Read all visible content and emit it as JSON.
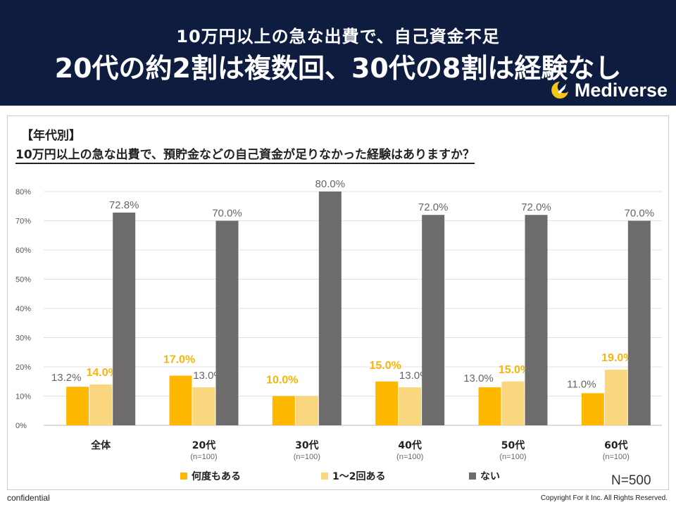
{
  "header": {
    "subtitle": "10万円以上の急な出費で、自己資金不足",
    "title": "20代の約2割は複数回、30代の8割は経験なし",
    "logo_text": "Mediverse"
  },
  "question": {
    "category": "【年代別】",
    "text": "10万円以上の急な出費で、預貯金などの自己資金が足りなかった経験はありますか？"
  },
  "sample_size": "N=500",
  "footer": {
    "left": "confidential",
    "right": "Copyright For it Inc. All Rights Reserved."
  },
  "colors": {
    "header_bg": "#0e1c3f",
    "series_many": "#ffb800",
    "series_few": "#fad77e",
    "series_none": "#6e6b6d",
    "highlight_label": "#f5b50b",
    "normal_label": "#666666"
  },
  "chart_data": {
    "type": "bar",
    "title": "",
    "xlabel": "",
    "ylabel": "",
    "ylim": [
      0,
      80
    ],
    "yticks": [
      0,
      10,
      20,
      30,
      40,
      50,
      60,
      70,
      80
    ],
    "ytick_labels": [
      "0%",
      "10%",
      "20%",
      "30%",
      "40%",
      "50%",
      "60%",
      "70%",
      "80%"
    ],
    "grid": true,
    "legend_position": "bottom",
    "categories": [
      "全体",
      "20代",
      "30代",
      "40代",
      "50代",
      "60代"
    ],
    "category_sub": [
      "",
      "(n=100)",
      "(n=100)",
      "(n=100)",
      "(n=100)",
      "(n=100)"
    ],
    "series": [
      {
        "name": "何度もある",
        "values": [
          13.2,
          17.0,
          10.0,
          15.0,
          13.0,
          11.0
        ],
        "labels": [
          "13.2%",
          "17.0%",
          "10.0%",
          "15.0%",
          "13.0%",
          "11.0%"
        ],
        "highlight": [
          false,
          true,
          true,
          true,
          false,
          false
        ]
      },
      {
        "name": "1～2回ある",
        "values": [
          14.0,
          13.0,
          10.0,
          13.0,
          15.0,
          19.0
        ],
        "labels": [
          "14.0%",
          "13.0%",
          "",
          "13.0%",
          "15.0%",
          "19.0%"
        ],
        "highlight": [
          true,
          false,
          false,
          false,
          true,
          true
        ]
      },
      {
        "name": "ない",
        "values": [
          72.8,
          70.0,
          80.0,
          72.0,
          72.0,
          70.0
        ],
        "labels": [
          "72.8%",
          "70.0%",
          "80.0%",
          "72.0%",
          "72.0%",
          "70.0%"
        ],
        "highlight": [
          false,
          false,
          false,
          false,
          false,
          false
        ]
      }
    ]
  }
}
